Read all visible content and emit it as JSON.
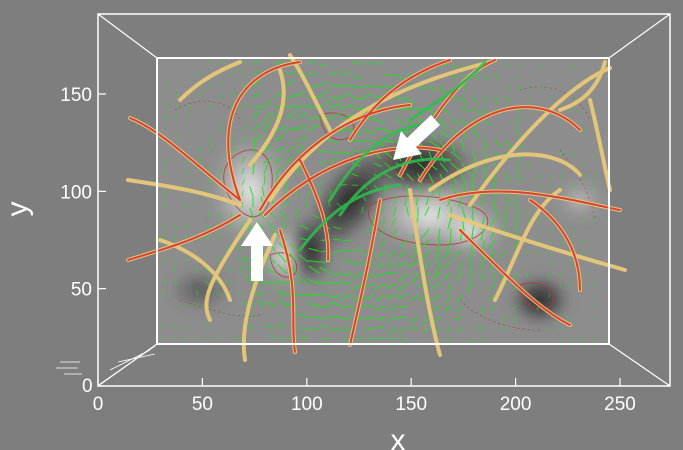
{
  "figure": {
    "colors": {
      "background": "#7e7e7e",
      "frame": "#ffffff",
      "field_line_outer": "#e8c97a",
      "field_line_inner": "#d8332d",
      "vector_arrows": "#1fe01f",
      "contour_lines": "#b03a2e",
      "arrows": "#ffffff"
    },
    "axes": {
      "x": {
        "title": "x",
        "ticks": [
          "0",
          "50",
          "100",
          "150",
          "200",
          "250"
        ],
        "range": [
          0,
          272
        ]
      },
      "y": {
        "title": "y",
        "ticks": [
          "50",
          "100",
          "150"
        ],
        "origin_label": "0",
        "range": [
          0,
          187
        ]
      }
    },
    "markers": [
      {
        "name": "upward-arrow",
        "direction": "up"
      },
      {
        "name": "down-left-arrow",
        "direction": "down-left"
      }
    ]
  }
}
